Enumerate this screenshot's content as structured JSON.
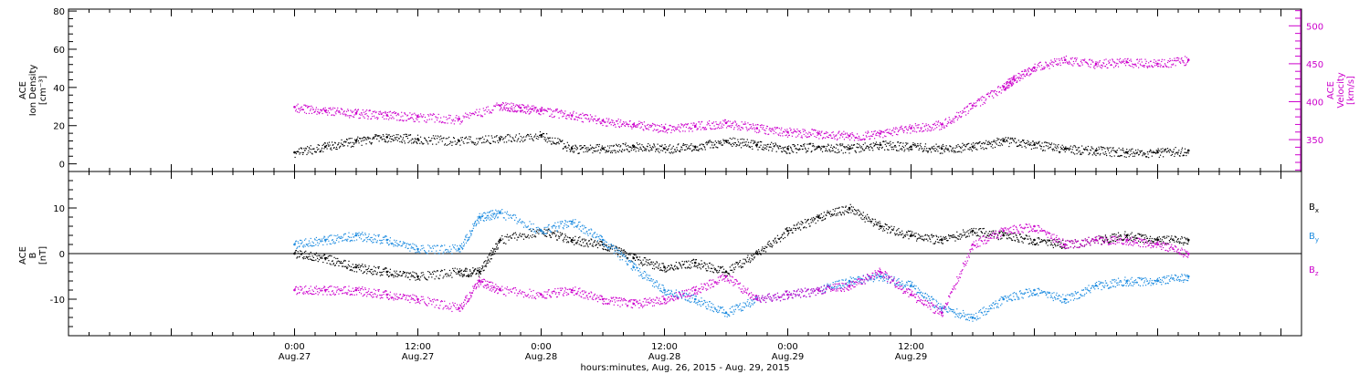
{
  "chart_data": [
    {
      "type": "scatter",
      "panel": "top",
      "ylabel_left": [
        "ACE",
        "Ion Density",
        "[cm⁻³]"
      ],
      "ylabel_right": [
        "ACE",
        "Velocity",
        "[km/s]"
      ],
      "ylim_left": [
        -4,
        81
      ],
      "yticks_left": [
        0,
        20,
        40,
        60,
        80
      ],
      "ylim_right": [
        308,
        522
      ],
      "yticks_right": [
        350,
        400,
        450,
        500
      ],
      "series": [
        {
          "axis": "left",
          "color": "#000000",
          "x": [
            0,
            3,
            6,
            9,
            12,
            16,
            20,
            24,
            27,
            30,
            33,
            36,
            39,
            42,
            45,
            48,
            51,
            54,
            57,
            60,
            63,
            66,
            69,
            72,
            75,
            78,
            81,
            84,
            87
          ],
          "values": [
            6,
            9,
            12,
            14,
            13,
            12,
            13,
            15,
            8,
            8,
            9,
            8,
            9,
            12,
            10,
            8,
            9,
            8,
            10,
            9,
            8,
            9,
            12,
            10,
            8,
            7,
            6,
            6,
            7
          ]
        },
        {
          "axis": "right",
          "color": "#cc00cc",
          "x": [
            0,
            3,
            6,
            9,
            12,
            16,
            20,
            22,
            24,
            27,
            30,
            33,
            36,
            39,
            42,
            45,
            48,
            51,
            54,
            57,
            60,
            63,
            66,
            69,
            70,
            72,
            75,
            78,
            81,
            84,
            87
          ],
          "values": [
            393,
            388,
            385,
            382,
            380,
            377,
            395,
            392,
            388,
            382,
            375,
            370,
            365,
            368,
            372,
            365,
            360,
            358,
            355,
            358,
            365,
            370,
            395,
            420,
            430,
            445,
            455,
            450,
            452,
            450,
            455
          ]
        }
      ]
    },
    {
      "type": "scatter",
      "panel": "bottom",
      "ylabel_left": [
        "ACE",
        "B",
        "[nT]"
      ],
      "ylim_left": [
        -18,
        18
      ],
      "yticks_left": [
        -10,
        0,
        10
      ],
      "series": [
        {
          "name": "Bx",
          "name_main": "B",
          "name_sub": "x",
          "color": "#000000",
          "x": [
            0,
            3,
            6,
            9,
            12,
            16,
            18,
            20,
            24,
            27,
            30,
            33,
            36,
            39,
            42,
            45,
            48,
            51,
            54,
            57,
            60,
            63,
            66,
            69,
            72,
            75,
            78,
            81,
            84,
            87
          ],
          "values": [
            0,
            -1,
            -3,
            -4,
            -5,
            -4,
            -4,
            3,
            5,
            3,
            2,
            -1,
            -3,
            -2,
            -4,
            0,
            5,
            8,
            10,
            6,
            4,
            3,
            5,
            4,
            3,
            2,
            3,
            4,
            3,
            3
          ]
        },
        {
          "name": "By",
          "name_main": "B",
          "name_sub": "y",
          "color": "#1e8ce0",
          "x": [
            0,
            3,
            6,
            9,
            12,
            16,
            18,
            20,
            24,
            27,
            30,
            33,
            36,
            39,
            42,
            45,
            48,
            51,
            54,
            57,
            60,
            63,
            66,
            69,
            72,
            75,
            78,
            81,
            84,
            87
          ],
          "values": [
            2,
            3,
            4,
            3,
            1,
            1,
            8,
            9,
            5,
            7,
            3,
            -3,
            -8,
            -10,
            -13,
            -10,
            -9,
            -8,
            -6,
            -5,
            -7,
            -12,
            -14,
            -10,
            -8,
            -10,
            -7,
            -6,
            -6,
            -5
          ]
        },
        {
          "name": "Bz",
          "name_main": "B",
          "name_sub": "z",
          "color": "#cc00cc",
          "x": [
            0,
            3,
            6,
            9,
            12,
            16,
            18,
            20,
            24,
            27,
            30,
            33,
            36,
            39,
            42,
            45,
            48,
            51,
            54,
            57,
            60,
            63,
            66,
            69,
            72,
            75,
            78,
            81,
            84,
            87
          ],
          "values": [
            -8,
            -8,
            -8,
            -9,
            -10,
            -12,
            -6,
            -8,
            -9,
            -8,
            -10,
            -11,
            -10,
            -8,
            -5,
            -10,
            -9,
            -8,
            -7,
            -4,
            -9,
            -13,
            2,
            5,
            6,
            2,
            3,
            3,
            2,
            0
          ]
        }
      ]
    }
  ],
  "x_axis": {
    "range_hours": [
      -22,
      98
    ],
    "ticks": [
      {
        "h": 0,
        "time": "0:00",
        "date": "Aug.27"
      },
      {
        "h": 12,
        "time": "12:00",
        "date": "Aug.27"
      },
      {
        "h": 24,
        "time": "0:00",
        "date": "Aug.28"
      },
      {
        "h": 36,
        "time": "12:00",
        "date": "Aug.28"
      },
      {
        "h": 48,
        "time": "0:00",
        "date": "Aug.29"
      },
      {
        "h": 60,
        "time": "12:00",
        "date": "Aug.29"
      }
    ],
    "title": "hours:minutes, Aug. 26, 2015 - Aug. 29, 2015"
  }
}
